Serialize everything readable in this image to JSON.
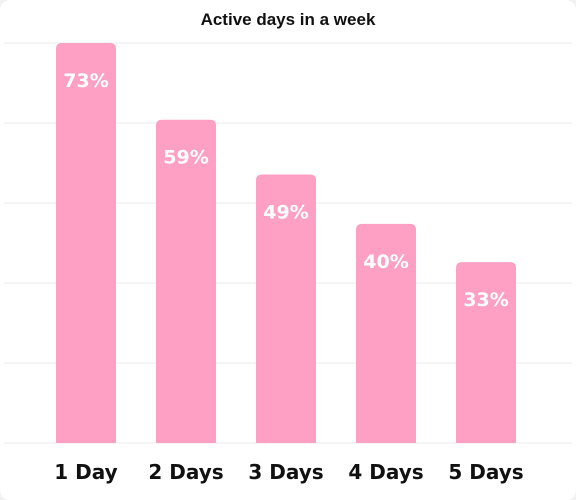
{
  "colors": {
    "bar": "#fda0c4",
    "grid": "#f2f2f2",
    "value_label": "#ffffff",
    "tick_label": "#111111"
  },
  "chart_data": {
    "type": "bar",
    "title": "Active days in a week",
    "xlabel": "",
    "ylabel": "",
    "categories": [
      "1 Day",
      "2 Days",
      "3 Days",
      "4 Days",
      "5 Days"
    ],
    "values": [
      73,
      59,
      49,
      40,
      33
    ],
    "value_labels": [
      "73%",
      "59%",
      "49%",
      "40%",
      "33%"
    ],
    "ylim": [
      0,
      73
    ],
    "grid": true,
    "legend": "none"
  }
}
